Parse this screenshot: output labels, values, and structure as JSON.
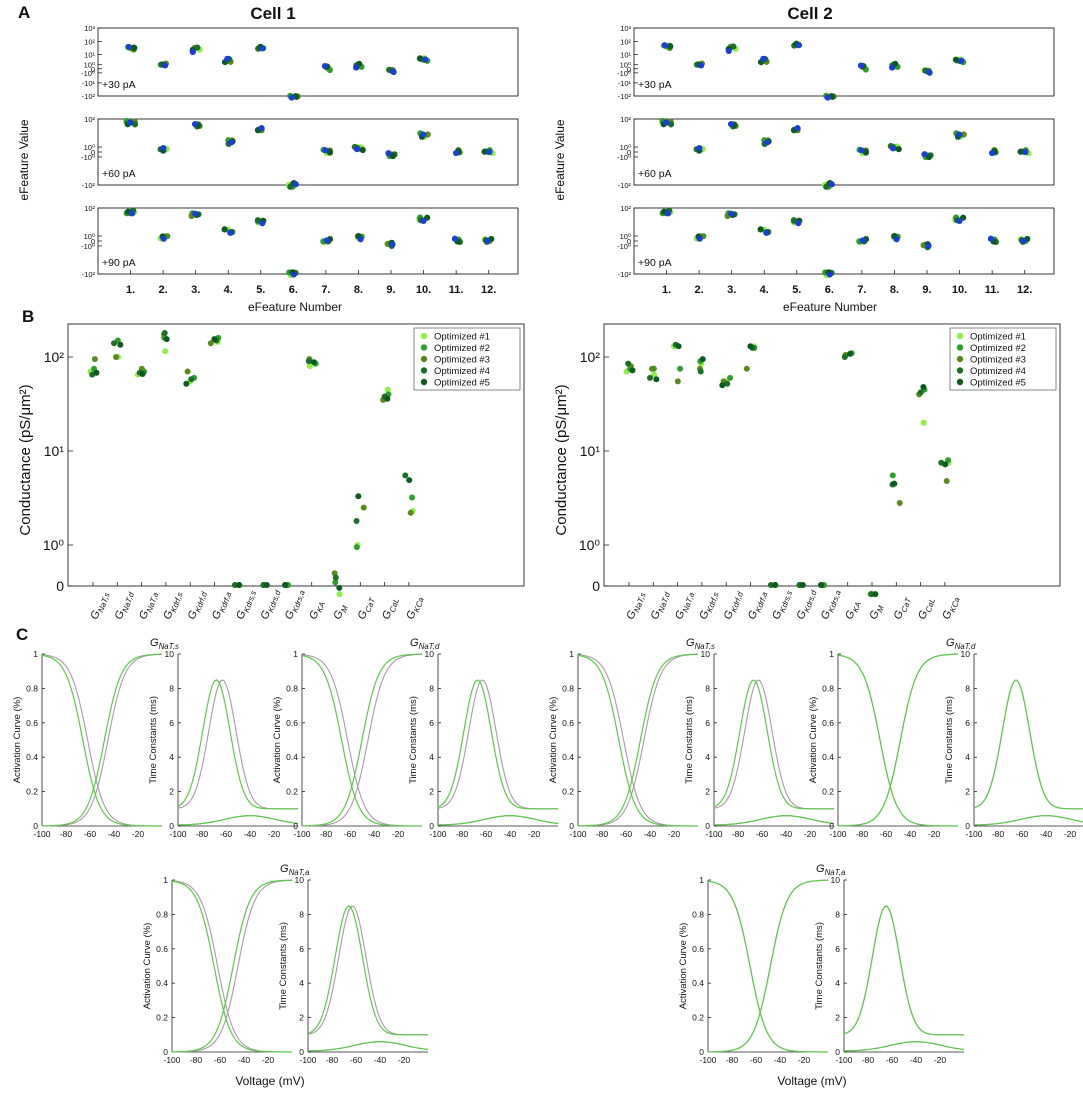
{
  "panel_letters": {
    "a": "A",
    "b": "B",
    "c": "C"
  },
  "titles": {
    "cell1": "Cell 1",
    "cell2": "Cell 2"
  },
  "colors": {
    "blue": "#1b3fd1",
    "green_light": "#90ee4a",
    "green_mid": "#2e9e2e",
    "green_olive": "#5a8a1f",
    "green_dark": "#1e6e2a",
    "green_darkest": "#0c5a20",
    "gray": "#a89aa8",
    "green_curve": "#5cc84a"
  },
  "labels": {
    "panelA_ylabel": "eFeature Value",
    "panelA_xlabel": "eFeature Number",
    "panelB_ylabel": "Conductance (pS/μm²)",
    "panelC_act_ylabel": "Activation Curve (%)",
    "panelC_tau_ylabel": "Time Constants (ms)",
    "panelC_xlabel": "Voltage (mV)"
  },
  "chart_data": [
    {
      "type": "scatter",
      "panel": "A",
      "cell": "Cell 1",
      "x_categories": [
        "1.",
        "2.",
        "3.",
        "4.",
        "5.",
        "6.",
        "7.",
        "8.",
        "9.",
        "10.",
        "11.",
        "12."
      ],
      "y_scale": "symlog",
      "y_ticks_30": [
        "10³",
        "10²",
        "10¹",
        "10⁰",
        "0",
        "-10⁰",
        "-10¹",
        "-10²"
      ],
      "y_ticks": [
        "10²",
        "10⁰",
        "0",
        "-10⁰",
        "-10²"
      ],
      "rows": [
        {
          "label": "+30 pA",
          "values": [
            30,
            0.8,
            25,
            3,
            35,
            -100,
            0.1,
            0.8,
            -0.6,
            4,
            null,
            null
          ]
        },
        {
          "label": "+60 pA",
          "values": [
            60,
            0.6,
            40,
            3,
            20,
            -100,
            0.1,
            0.6,
            -0.4,
            10,
            0.1,
            0.1
          ]
        },
        {
          "label": "+90 pA",
          "values": [
            60,
            0.5,
            40,
            3,
            15,
            -100,
            0.1,
            0.6,
            -0.5,
            20,
            0.1,
            0.1
          ]
        }
      ]
    },
    {
      "type": "scatter",
      "panel": "A",
      "cell": "Cell 2",
      "x_categories": [
        "1.",
        "2.",
        "3.",
        "4.",
        "5.",
        "6.",
        "7.",
        "8.",
        "9.",
        "10.",
        "11.",
        "12."
      ],
      "y_scale": "symlog",
      "y_ticks_30": [
        "10³",
        "10²",
        "10¹",
        "10⁰",
        "0",
        "-10⁰",
        "-10¹",
        "-10²"
      ],
      "y_ticks": [
        "10²",
        "10⁰",
        "0",
        "-10⁰",
        "-10²"
      ],
      "rows": [
        {
          "label": "+30 pA",
          "values": [
            40,
            0.8,
            30,
            3,
            60,
            -100,
            0.2,
            0.8,
            -0.8,
            3,
            null,
            null
          ]
        },
        {
          "label": "+60 pA",
          "values": [
            60,
            0.6,
            40,
            3,
            20,
            -100,
            0.1,
            0.8,
            -0.6,
            10,
            0.1,
            0.1
          ]
        },
        {
          "label": "+90 pA",
          "values": [
            60,
            0.5,
            40,
            3,
            15,
            -100,
            0.1,
            0.6,
            -0.8,
            20,
            0.1,
            0.1
          ]
        }
      ]
    },
    {
      "type": "scatter",
      "panel": "B",
      "cell": "Cell 1",
      "y_scale": "log",
      "y_ticks": [
        "10²",
        "10¹",
        "10⁰",
        "0"
      ],
      "categories": [
        "G_NaT,s",
        "G_NaT,d",
        "G_NaT,a",
        "G_Kdrf,s",
        "G_Kdrf,d",
        "G_Kdrf,a",
        "G_Kdrs,s",
        "G_Kdrs,d",
        "G_Kdrs,a",
        "G_KA",
        "G_M",
        "G_CaT",
        "G_CaL",
        "G_KCa"
      ],
      "legend": [
        "Optimized #1",
        "Optimized #2",
        "Optimized #3",
        "Optimized #4",
        "Optimized #5"
      ],
      "series": [
        {
          "name": "Optimized #1",
          "values": [
            70,
            100,
            65,
            115,
            55,
            145,
            0,
            0,
            0,
            80,
            0.3,
            1.0,
            45,
            2.3
          ]
        },
        {
          "name": "Optimized #2",
          "values": [
            75,
            150,
            70,
            160,
            60,
            160,
            0,
            0,
            0,
            85,
            0.4,
            0.95,
            40,
            3.2
          ]
        },
        {
          "name": "Optimized #3",
          "values": [
            95,
            100,
            75,
            175,
            70,
            140,
            0,
            0,
            0,
            95,
            0.5,
            2.5,
            35,
            2.2
          ]
        },
        {
          "name": "Optimized #4",
          "values": [
            65,
            140,
            68,
            180,
            58,
            150,
            0,
            0,
            0,
            90,
            0.45,
            1.8,
            38,
            5.5
          ]
        },
        {
          "name": "Optimized #5",
          "values": [
            68,
            135,
            66,
            155,
            52,
            155,
            0,
            0,
            0,
            88,
            0.35,
            3.3,
            36,
            4.9
          ]
        }
      ]
    },
    {
      "type": "scatter",
      "panel": "B",
      "cell": "Cell 2",
      "y_scale": "log",
      "y_ticks": [
        "10²",
        "10¹",
        "10⁰",
        "0"
      ],
      "categories": [
        "G_NaT,s",
        "G_NaT,d",
        "G_NaT,a",
        "G_Kdrf,s",
        "G_Kdrf,d",
        "G_Kdrf,a",
        "G_Kdrs,s",
        "G_Kdrs,d",
        "G_Kdrs,a",
        "G_KA",
        "G_M",
        "G_CaT",
        "G_CaL",
        "G_KCa"
      ],
      "legend": [
        "Optimized #1",
        "Optimized #2",
        "Optimized #3",
        "Optimized #4",
        "Optimized #5"
      ],
      "series": [
        {
          "name": "Optimized #1",
          "values": [
            70,
            65,
            130,
            85,
            55,
            130,
            0,
            0,
            0,
            105,
            0.3,
            4.5,
            20,
            7.5
          ]
        },
        {
          "name": "Optimized #2",
          "values": [
            75,
            75,
            75,
            90,
            60,
            125,
            0,
            0,
            0,
            110,
            0.3,
            5.5,
            45,
            8.0
          ]
        },
        {
          "name": "Optimized #3",
          "values": [
            80,
            75,
            55,
            75,
            55,
            75,
            0,
            0,
            0,
            105,
            0.3,
            2.8,
            40,
            4.8
          ]
        },
        {
          "name": "Optimized #4",
          "values": [
            85,
            60,
            135,
            70,
            52,
            125,
            0,
            0,
            0,
            100,
            0.3,
            4.4,
            42,
            7.5
          ]
        },
        {
          "name": "Optimized #5",
          "values": [
            72,
            58,
            130,
            95,
            50,
            130,
            0,
            0,
            0,
            108,
            0.3,
            4.5,
            48,
            7.2
          ]
        }
      ]
    },
    {
      "type": "line",
      "panel": "C",
      "cell": "Cell 1",
      "x": {
        "min": -100,
        "max": 0,
        "ticks": [
          "-100",
          "-80",
          "-60",
          "-40",
          "-20"
        ]
      },
      "activation_yticks": [
        "0",
        "0.2",
        "0.4",
        "0.6",
        "0.8",
        "1"
      ],
      "tau_yticks": [
        "0",
        "2",
        "4",
        "6",
        "8",
        "10"
      ],
      "channels": [
        {
          "title": "G_NaT,s",
          "gray": {
            "m_half": -45,
            "h_half": -62,
            "tau_peak_v": -63
          },
          "green": {
            "m_half": -48,
            "h_half": -66,
            "tau_peak_v": -68
          }
        },
        {
          "title": "G_NaT,d",
          "gray": {
            "m_half": -45,
            "h_half": -62,
            "tau_peak_v": -63
          },
          "green": {
            "m_half": -50,
            "h_half": -67,
            "tau_peak_v": -67
          }
        },
        {
          "title": "G_NaT,a",
          "gray": {
            "m_half": -45,
            "h_half": -62,
            "tau_peak_v": -63
          },
          "green": {
            "m_half": -49,
            "h_half": -65,
            "tau_peak_v": -66
          }
        }
      ]
    },
    {
      "type": "line",
      "panel": "C",
      "cell": "Cell 2",
      "x": {
        "min": -100,
        "max": 0,
        "ticks": [
          "-100",
          "-80",
          "-60",
          "-40",
          "-20"
        ]
      },
      "activation_yticks": [
        "0",
        "0.2",
        "0.4",
        "0.6",
        "0.8",
        "1"
      ],
      "tau_yticks": [
        "0",
        "2",
        "4",
        "6",
        "8",
        "10"
      ],
      "channels": [
        {
          "title": "G_NaT,s",
          "gray": {
            "m_half": -45,
            "h_half": -62,
            "tau_peak_v": -63
          },
          "green": {
            "m_half": -48,
            "h_half": -66,
            "tau_peak_v": -67
          }
        },
        {
          "title": "G_NaT,d",
          "gray": {
            "m_half": -48,
            "h_half": -65,
            "tau_peak_v": -65
          },
          "green": {
            "m_half": -48,
            "h_half": -65,
            "tau_peak_v": -65
          }
        },
        {
          "title": "G_NaT,a",
          "gray": {
            "m_half": -48,
            "h_half": -65,
            "tau_peak_v": -65
          },
          "green": {
            "m_half": -48,
            "h_half": -65,
            "tau_peak_v": -65
          }
        }
      ]
    }
  ]
}
